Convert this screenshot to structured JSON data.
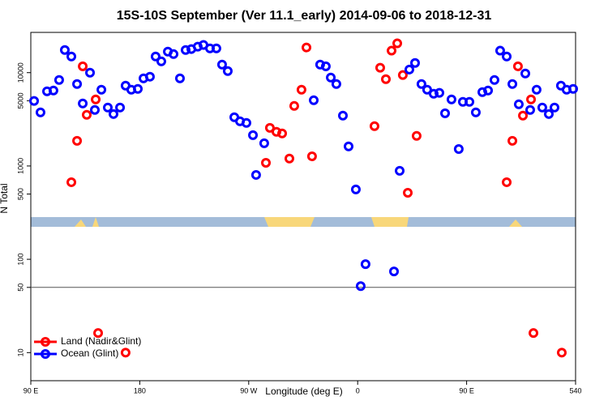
{
  "chart_data": {
    "type": "scatter",
    "title": "15S-10S September (Ver 11.1_early)   2014-09-06 to 2018-12-31",
    "x_label": "Longitude (deg E)",
    "y_label": "N Total",
    "xlim": [
      90,
      540
    ],
    "xticks": [
      {
        "value": 90,
        "label": "90 E"
      },
      180,
      {
        "value": 270,
        "label": "90 W"
      },
      {
        "value": 360,
        "label": "0"
      },
      {
        "value": 450,
        "label": "90 E"
      },
      540
    ],
    "ylim": [
      5,
      27000
    ],
    "yticks": [
      10,
      50,
      100,
      500,
      1000,
      5000,
      10000
    ],
    "ylog": true,
    "reference_line": 50,
    "series": [
      {
        "name": "Land (Nadir&Glint)",
        "color": "#ff0000",
        "x": [
          123.5,
          128.2,
          132.9,
          136.2,
          143.6,
          145.6,
          168.3,
          284.2,
          287.5,
          292.9,
          297.6,
          303.6,
          307.6,
          313.6,
          317.7,
          322.3,
          373.9,
          378.6,
          383.3,
          388.0,
          392.7,
          397.3,
          401.4,
          408.7,
          483.1,
          487.8,
          492.4,
          496.5,
          503.2,
          505.2,
          528.6
        ],
        "values": [
          670,
          1860,
          11700,
          3530,
          5160,
          16.2,
          10,
          1080,
          2560,
          2320,
          2230,
          1200,
          4400,
          6560,
          18600,
          1270,
          2670,
          11300,
          8510,
          17200,
          20600,
          9420,
          516,
          2100,
          670,
          1860,
          11700,
          3460,
          5160,
          16.2,
          10
        ]
      },
      {
        "name": "Ocean (Glint)",
        "color": "#0000ff",
        "x": [
          92.7,
          98.0,
          103.4,
          108.7,
          113.4,
          118.1,
          123.5,
          128.2,
          132.9,
          138.9,
          142.9,
          148.3,
          153.6,
          158.3,
          163.7,
          168.3,
          173.0,
          178.4,
          183.1,
          188.4,
          193.1,
          197.8,
          203.2,
          207.9,
          213.2,
          217.9,
          222.6,
          227.9,
          232.6,
          238.0,
          243.3,
          248.0,
          252.7,
          258.1,
          262.8,
          268.1,
          273.5,
          276.1,
          282.8,
          323.7,
          329.0,
          333.7,
          337.8,
          342.4,
          347.8,
          352.5,
          358.5,
          362.5,
          366.5,
          390.0,
          394.7,
          402.7,
          407.4,
          412.7,
          417.4,
          422.8,
          427.5,
          432.2,
          437.5,
          443.5,
          446.9,
          452.3,
          457.6,
          463.0,
          467.7,
          473.0,
          477.7,
          483.1,
          487.8,
          493.1,
          498.5,
          502.5,
          507.8,
          512.5,
          517.9,
          522.6,
          527.9,
          532.6,
          538.0
        ],
        "values": [
          4970,
          3750,
          6310,
          6440,
          8350,
          17500,
          14900,
          7550,
          4670,
          10000,
          3980,
          6560,
          4230,
          3600,
          4230,
          7260,
          6560,
          6700,
          8690,
          9050,
          14900,
          13200,
          16800,
          15800,
          8690,
          17500,
          17900,
          19000,
          19800,
          18200,
          18200,
          12200,
          10400,
          3330,
          3010,
          2890,
          2140,
          802,
          1750,
          5060,
          12200,
          11700,
          8870,
          7550,
          3460,
          1620,
          560,
          51.6,
          88.7,
          74.1,
          887,
          10800,
          12700,
          7550,
          6560,
          5940,
          6070,
          3670,
          5160,
          1520,
          4860,
          4860,
          3750,
          6180,
          6440,
          8350,
          17200,
          14900,
          7550,
          4580,
          9800,
          3980,
          6560,
          4230,
          3600,
          4230,
          7260,
          6560,
          6700
        ]
      }
    ]
  }
}
